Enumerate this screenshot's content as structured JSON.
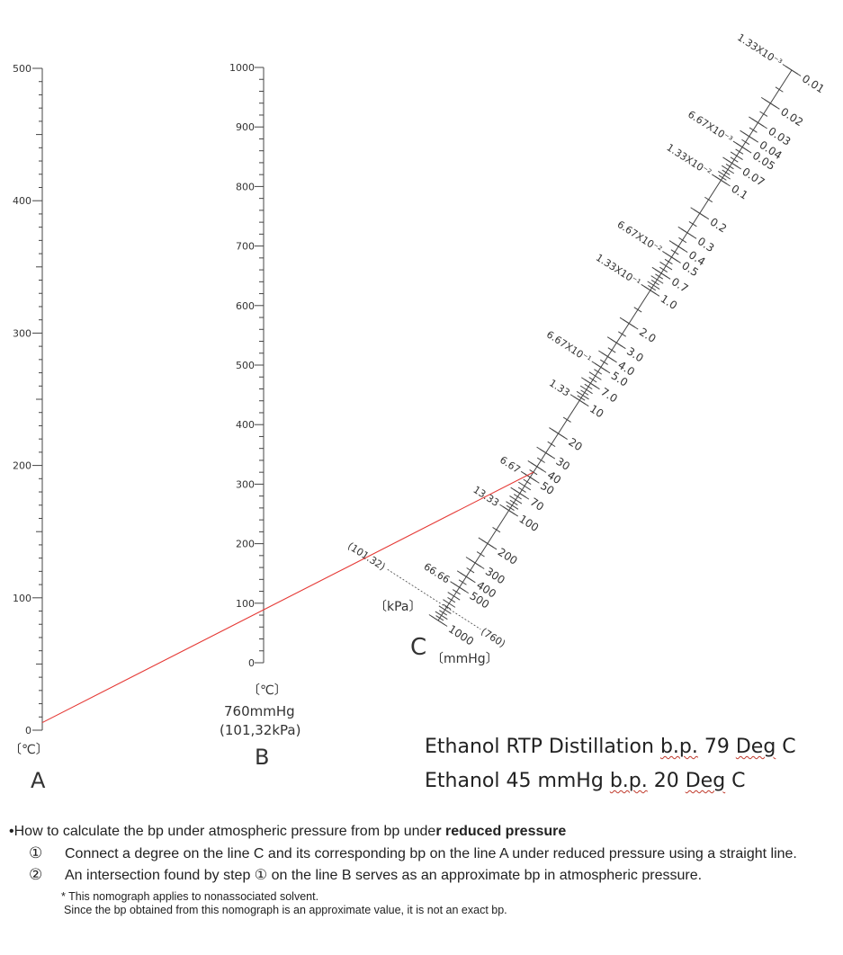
{
  "chart_data": {
    "type": "nomograph",
    "scale_a": {
      "letter": "A",
      "unit_label": "〔℃〕",
      "range": [
        0,
        500
      ],
      "tick_labels": [
        "0",
        "100",
        "200",
        "300",
        "400",
        "500"
      ]
    },
    "scale_b": {
      "letter": "B",
      "unit_label": "〔℃〕",
      "pressure_label": "760mmHg",
      "pressure_label2": "(101,32kPa)",
      "range": [
        0,
        1000
      ],
      "tick_labels": [
        "0",
        "100",
        "200",
        "300",
        "400",
        "500",
        "600",
        "700",
        "800",
        "900",
        "1000"
      ]
    },
    "scale_c": {
      "letter": "C",
      "mmhg_unit": "〔mmHg〕",
      "kpa_unit": "〔kPa〕",
      "mmhg_ticks": [
        {
          "v": 0.01,
          "label": "0.01"
        },
        {
          "v": 0.02,
          "label": "0.02"
        },
        {
          "v": 0.03,
          "label": "0.03"
        },
        {
          "v": 0.04,
          "label": "0.04"
        },
        {
          "v": 0.05,
          "label": "0.05"
        },
        {
          "v": 0.07,
          "label": "0.07"
        },
        {
          "v": 0.1,
          "label": "0.1"
        },
        {
          "v": 0.2,
          "label": "0.2"
        },
        {
          "v": 0.3,
          "label": "0.3"
        },
        {
          "v": 0.4,
          "label": "0.4"
        },
        {
          "v": 0.5,
          "label": "0.5"
        },
        {
          "v": 0.7,
          "label": "0.7"
        },
        {
          "v": 1.0,
          "label": "1.0"
        },
        {
          "v": 2.0,
          "label": "2.0"
        },
        {
          "v": 3.0,
          "label": "3.0"
        },
        {
          "v": 4.0,
          "label": "4.0"
        },
        {
          "v": 5.0,
          "label": "5.0"
        },
        {
          "v": 7.0,
          "label": "7.0"
        },
        {
          "v": 10,
          "label": "10"
        },
        {
          "v": 20,
          "label": "20"
        },
        {
          "v": 30,
          "label": "30"
        },
        {
          "v": 40,
          "label": "40"
        },
        {
          "v": 50,
          "label": "50"
        },
        {
          "v": 70,
          "label": "70"
        },
        {
          "v": 100,
          "label": "100"
        },
        {
          "v": 200,
          "label": "200"
        },
        {
          "v": 300,
          "label": "300"
        },
        {
          "v": 400,
          "label": "400"
        },
        {
          "v": 500,
          "label": "500"
        },
        {
          "v": 1000,
          "label": "1000"
        }
      ],
      "kpa_ticks": [
        {
          "v": 0.01,
          "label": "1.33X10⁻³"
        },
        {
          "v": 0.05,
          "label": "6.67X10⁻³"
        },
        {
          "v": 0.1,
          "label": "1.33X10⁻²"
        },
        {
          "v": 0.5,
          "label": "6.67X10⁻²"
        },
        {
          "v": 1.0,
          "label": "1.33X10⁻¹"
        },
        {
          "v": 5.0,
          "label": "6.67X10⁻¹"
        },
        {
          "v": 10,
          "label": "1.33"
        },
        {
          "v": 50,
          "label": "6.67"
        },
        {
          "v": 100,
          "label": "13.33"
        },
        {
          "v": 500,
          "label": "66.66"
        }
      ],
      "ref_mmhg": {
        "v": 760,
        "label": "(760)"
      },
      "ref_kpa": {
        "v": 760,
        "label": "(101.32)"
      }
    },
    "line": {
      "a_value": 20,
      "c_value_mmhg": 45,
      "b_value": 96,
      "color": "#e53935"
    }
  },
  "notes": [
    "Ethanol RTP Distillation b.p. 79 Deg C",
    "Ethanol 45 mmHg b.p. 20 Deg C"
  ],
  "instructions": {
    "bullet": "•",
    "title_start": "How to calculate the bp under atmospheric pressure from bp unde",
    "title_bold": "r reduced pressure",
    "steps": [
      {
        "num": "①",
        "text": "Connect a degree on the line C and its corresponding bp on the line A under reduced pressure using a straight line."
      },
      {
        "num": "②",
        "text": "An intersection found by step ① on the line B serves as an approximate bp in atmospheric pressure."
      }
    ],
    "footnotes": [
      "* This nomograph applies to nonassociated solvent.",
      "Since the bp obtained from this nomograph is an approximate value, it is not an exact bp."
    ]
  }
}
